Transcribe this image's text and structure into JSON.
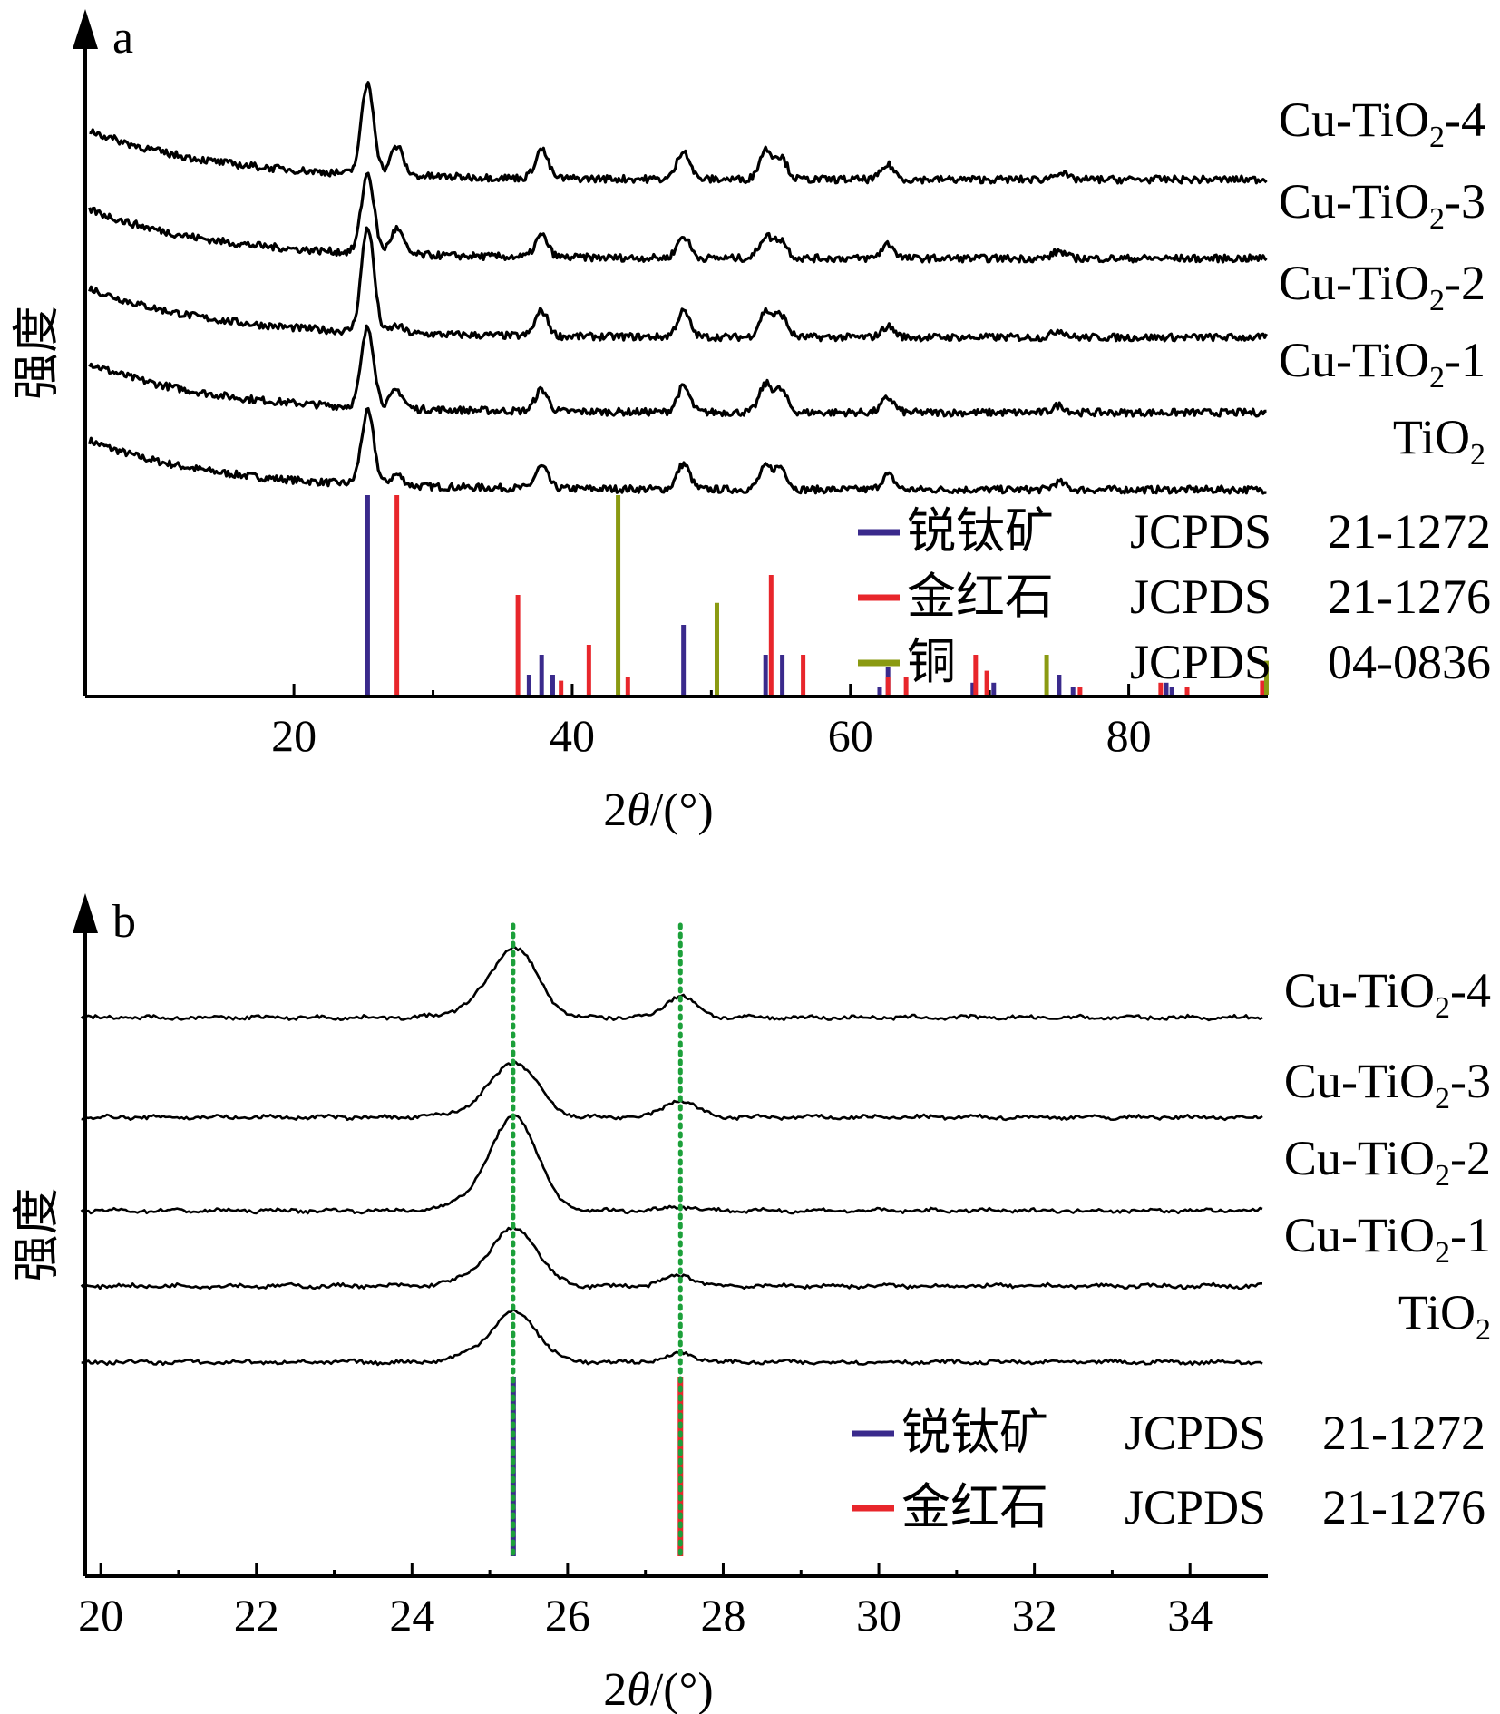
{
  "chart_data": [
    {
      "panel": "a",
      "type": "line",
      "xlabel_prefix": "2",
      "xlabel_theta": "θ",
      "xlabel_suffix": "/(°)",
      "ylabel": "强度",
      "xlim": [
        5,
        90
      ],
      "x_ticks": [
        20,
        40,
        60,
        80
      ],
      "series": [
        {
          "name": "TiO",
          "sub": "2",
          "suffix": "",
          "peaks": [
            [
              25.3,
              1.0
            ],
            [
              27.4,
              0.15
            ],
            [
              37.8,
              0.3
            ],
            [
              48.0,
              0.35
            ],
            [
              53.9,
              0.3
            ],
            [
              55.0,
              0.3
            ],
            [
              62.7,
              0.2
            ],
            [
              75.0,
              0.1
            ]
          ]
        },
        {
          "name": "Cu-TiO",
          "sub": "2",
          "suffix": "-1",
          "peaks": [
            [
              25.3,
              1.1
            ],
            [
              27.4,
              0.25
            ],
            [
              37.8,
              0.3
            ],
            [
              48.0,
              0.35
            ],
            [
              53.9,
              0.38
            ],
            [
              55.0,
              0.3
            ],
            [
              62.7,
              0.2
            ],
            [
              75.0,
              0.1
            ]
          ]
        },
        {
          "name": "Cu-TiO",
          "sub": "2",
          "suffix": "-2",
          "peaks": [
            [
              25.3,
              1.45
            ],
            [
              27.4,
              0.1
            ],
            [
              37.8,
              0.35
            ],
            [
              48.0,
              0.35
            ],
            [
              53.9,
              0.35
            ],
            [
              55.0,
              0.3
            ],
            [
              62.7,
              0.15
            ],
            [
              75.0,
              0.1
            ]
          ]
        },
        {
          "name": "Cu-TiO",
          "sub": "2",
          "suffix": "-3",
          "peaks": [
            [
              25.3,
              1.1
            ],
            [
              27.4,
              0.35
            ],
            [
              37.8,
              0.3
            ],
            [
              48.0,
              0.3
            ],
            [
              53.9,
              0.3
            ],
            [
              55.0,
              0.25
            ],
            [
              62.7,
              0.2
            ],
            [
              75.0,
              0.1
            ]
          ]
        },
        {
          "name": "Cu-TiO",
          "sub": "2",
          "suffix": "-4",
          "peaks": [
            [
              25.3,
              1.25
            ],
            [
              27.4,
              0.4
            ],
            [
              37.8,
              0.4
            ],
            [
              48.0,
              0.4
            ],
            [
              53.9,
              0.4
            ],
            [
              55.0,
              0.3
            ],
            [
              62.7,
              0.2
            ],
            [
              75.0,
              0.1
            ]
          ]
        }
      ],
      "reference": [
        {
          "name": "锐钛矿",
          "card": "JCPDS",
          "number": "21-1272",
          "color": "#3a2a8c",
          "lines": [
            [
              25.3,
              100
            ],
            [
              36.9,
              10
            ],
            [
              37.8,
              20
            ],
            [
              38.6,
              10
            ],
            [
              48.0,
              35
            ],
            [
              53.9,
              20
            ],
            [
              55.1,
              20
            ],
            [
              62.1,
              4
            ],
            [
              62.7,
              14
            ],
            [
              68.8,
              6
            ],
            [
              70.3,
              6
            ],
            [
              75.0,
              10
            ],
            [
              76.0,
              4
            ],
            [
              82.7,
              6
            ],
            [
              83.1,
              4
            ]
          ]
        },
        {
          "name": "金红石",
          "card": "JCPDS",
          "number": "21-1276",
          "color": "#e8262b",
          "lines": [
            [
              27.4,
              100
            ],
            [
              36.1,
              50
            ],
            [
              39.2,
              7
            ],
            [
              41.2,
              25
            ],
            [
              44.0,
              9
            ],
            [
              54.3,
              60
            ],
            [
              56.6,
              20
            ],
            [
              62.7,
              9
            ],
            [
              64.0,
              9
            ],
            [
              69.0,
              20
            ],
            [
              69.8,
              12
            ],
            [
              76.5,
              4
            ],
            [
              82.3,
              6
            ],
            [
              84.2,
              4
            ],
            [
              89.6,
              7
            ]
          ]
        },
        {
          "name": "铜",
          "card": "JCPDS",
          "number": "04-0836",
          "color": "#8a9a12",
          "lines": [
            [
              43.3,
              100
            ],
            [
              50.4,
              46
            ],
            [
              74.1,
              20
            ],
            [
              89.9,
              17
            ]
          ]
        }
      ]
    },
    {
      "panel": "b",
      "type": "line",
      "xlabel_prefix": "2",
      "xlabel_theta": "θ",
      "xlabel_suffix": "/(°)",
      "ylabel": "强度",
      "xlim": [
        19.8,
        35.0
      ],
      "x_ticks": [
        20,
        22,
        24,
        26,
        28,
        30,
        32,
        34
      ],
      "guide_lines": [
        25.3,
        27.45
      ],
      "guide_color": "#1ca03a",
      "series": [
        {
          "name": "TiO",
          "sub": "2",
          "suffix": "",
          "anatase_peak": 0.5,
          "rutile_peak": 0.1
        },
        {
          "name": "Cu-TiO",
          "sub": "2",
          "suffix": "-1",
          "anatase_peak": 0.58,
          "rutile_peak": 0.12
        },
        {
          "name": "Cu-TiO",
          "sub": "2",
          "suffix": "-2",
          "anatase_peak": 0.95,
          "rutile_peak": 0.05
        },
        {
          "name": "Cu-TiO",
          "sub": "2",
          "suffix": "-3",
          "anatase_peak": 0.55,
          "rutile_peak": 0.2
        },
        {
          "name": "Cu-TiO",
          "sub": "2",
          "suffix": "-4",
          "anatase_peak": 0.7,
          "rutile_peak": 0.25
        }
      ],
      "reference": [
        {
          "name": "锐钛矿",
          "card": "JCPDS",
          "number": "21-1272",
          "color": "#3a2a8c",
          "lines": [
            [
              25.3,
              100
            ]
          ]
        },
        {
          "name": "金红石",
          "card": "JCPDS",
          "number": "21-1276",
          "color": "#e8262b",
          "lines": [
            [
              27.45,
              100
            ]
          ]
        }
      ]
    }
  ]
}
